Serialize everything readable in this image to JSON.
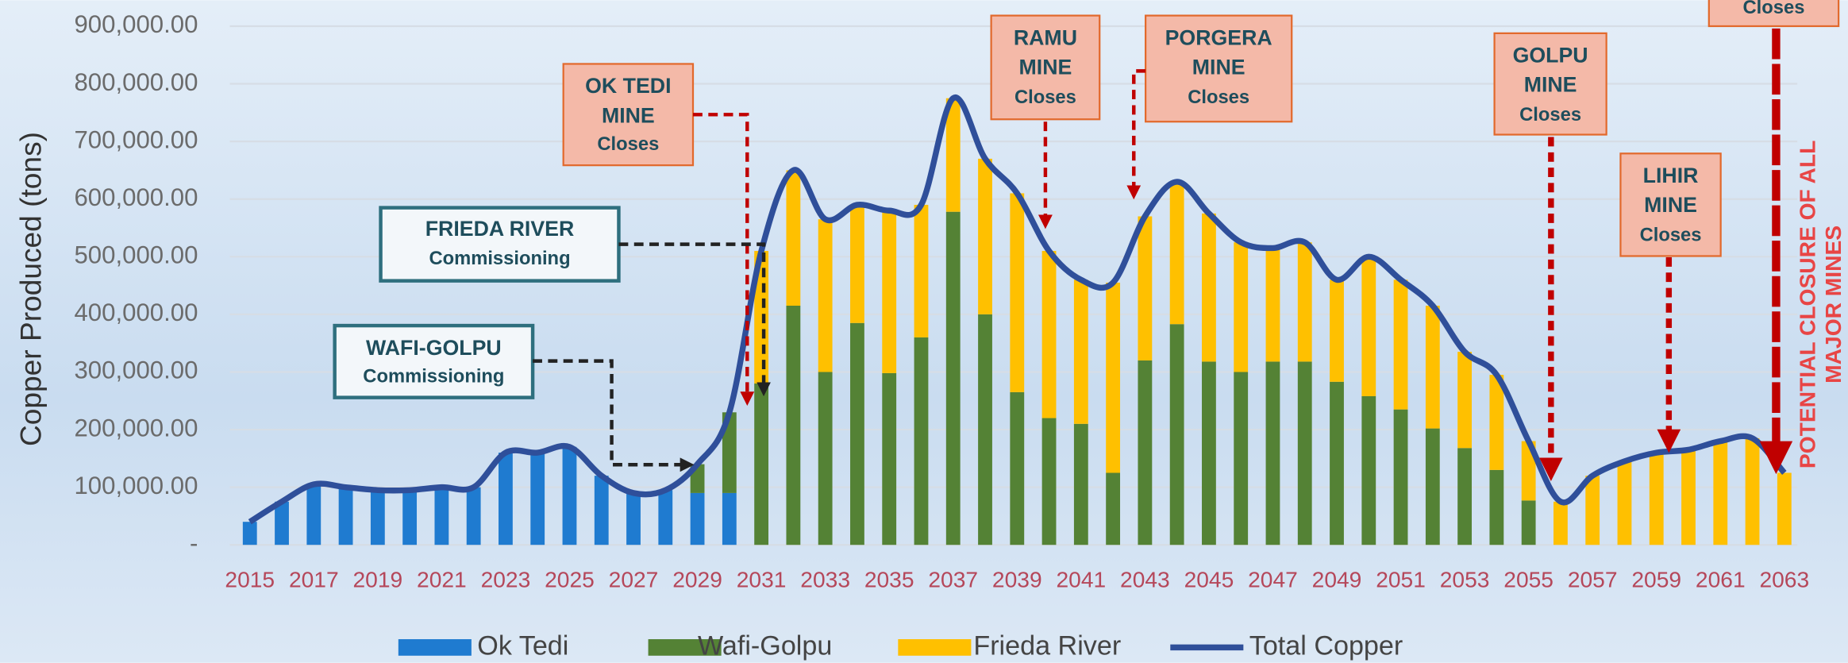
{
  "chart_data": {
    "type": "bar",
    "stacked": true,
    "y_label": "Copper Produced  (tons)",
    "categories": [
      "2015",
      null,
      "2017",
      null,
      "2019",
      null,
      "2021",
      null,
      "2023",
      null,
      "2025",
      null,
      "2027",
      null,
      "2029",
      null,
      "2031",
      null,
      "2033",
      null,
      "2035",
      null,
      "2037",
      null,
      "2039",
      null,
      "2041",
      null,
      "2043",
      null,
      "2045",
      null,
      "2047",
      null,
      "2049",
      null,
      "2051",
      null,
      "2053",
      null,
      "2055",
      null,
      "2057",
      null,
      "2059",
      null,
      "2061",
      null,
      "2063"
    ],
    "series": [
      {
        "name": "Ok Tedi",
        "color": "#1f7bd0",
        "values": [
          40000,
          75000,
          105000,
          100000,
          95000,
          95000,
          100000,
          100000,
          160000,
          160000,
          170000,
          120000,
          90000,
          95000,
          90000,
          90000,
          0,
          0,
          0,
          0,
          0,
          0,
          0,
          0,
          0,
          0,
          0,
          0,
          0,
          0,
          0,
          0,
          0,
          0,
          0,
          0,
          0,
          0,
          0,
          0,
          0,
          0,
          0,
          0,
          0,
          0,
          0,
          0,
          0
        ]
      },
      {
        "name": "Wafi-Golpu",
        "color": "#548235",
        "values": [
          0,
          0,
          0,
          0,
          0,
          0,
          0,
          0,
          0,
          0,
          0,
          0,
          0,
          0,
          50000,
          140000,
          280000,
          415000,
          300000,
          385000,
          298000,
          360000,
          578000,
          400000,
          265000,
          220000,
          210000,
          125000,
          320000,
          383000,
          318000,
          300000,
          318000,
          318000,
          283000,
          258000,
          235000,
          202000,
          168000,
          130000,
          77000,
          0,
          0,
          0,
          0,
          0,
          0,
          0,
          0
        ]
      },
      {
        "name": "Frieda River",
        "color": "#ffc000",
        "values": [
          0,
          0,
          0,
          0,
          0,
          0,
          0,
          0,
          0,
          0,
          0,
          0,
          0,
          0,
          0,
          0,
          230000,
          235000,
          265000,
          205000,
          282000,
          230000,
          197000,
          270000,
          345000,
          290000,
          250000,
          330000,
          250000,
          247000,
          257000,
          225000,
          197000,
          207000,
          177000,
          242000,
          225000,
          213000,
          167000,
          165000,
          103000,
          75000,
          120000,
          145000,
          160000,
          165000,
          180000,
          185000,
          125000
        ]
      },
      {
        "name": "Total Copper",
        "type": "line",
        "color": "#2f4f9a",
        "values": [
          40000,
          75000,
          105000,
          100000,
          95000,
          95000,
          100000,
          100000,
          160000,
          160000,
          170000,
          120000,
          90000,
          95000,
          140000,
          230000,
          510000,
          650000,
          565000,
          590000,
          580000,
          590000,
          775000,
          670000,
          610000,
          510000,
          460000,
          455000,
          570000,
          630000,
          575000,
          525000,
          515000,
          525000,
          460000,
          500000,
          460000,
          415000,
          335000,
          295000,
          180000,
          75000,
          120000,
          145000,
          160000,
          165000,
          180000,
          185000,
          125000
        ]
      }
    ],
    "ylim": [
      0,
      900000
    ],
    "yticks": [
      {
        "value": 0,
        "label": "-"
      },
      {
        "value": 100000,
        "label": "100,000.00"
      },
      {
        "value": 200000,
        "label": "200,000.00"
      },
      {
        "value": 300000,
        "label": "300,000.00"
      },
      {
        "value": 400000,
        "label": "400,000.00"
      },
      {
        "value": 500000,
        "label": "500,000.00"
      },
      {
        "value": 600000,
        "label": "600,000.00"
      },
      {
        "value": 700000,
        "label": "700,000.00"
      },
      {
        "value": 800000,
        "label": "800,000.00"
      },
      {
        "value": 900000,
        "label": "900,000.00"
      }
    ],
    "grid": true,
    "legend": "bottom",
    "annotations": [
      {
        "lines": [
          "OK TEDI",
          "MINE",
          "Closes"
        ]
      },
      {
        "lines": [
          "FRIEDA RIVER",
          "Commissioning"
        ]
      },
      {
        "lines": [
          "WAFI-GOLPU",
          "Commissioning"
        ]
      },
      {
        "lines": [
          "RAMU",
          "MINE",
          "Closes"
        ]
      },
      {
        "lines": [
          "PORGERA",
          "MINE",
          "Closes"
        ]
      },
      {
        "lines": [
          "GOLPU",
          "MINE",
          "Closes"
        ]
      },
      {
        "lines": [
          "LIHIR",
          "MINE",
          "Closes"
        ]
      },
      {
        "lines": [
          "Closes"
        ]
      }
    ],
    "side_note": [
      "POTENTIAL CLOSURE OF ALL",
      "MAJOR MINES"
    ]
  }
}
